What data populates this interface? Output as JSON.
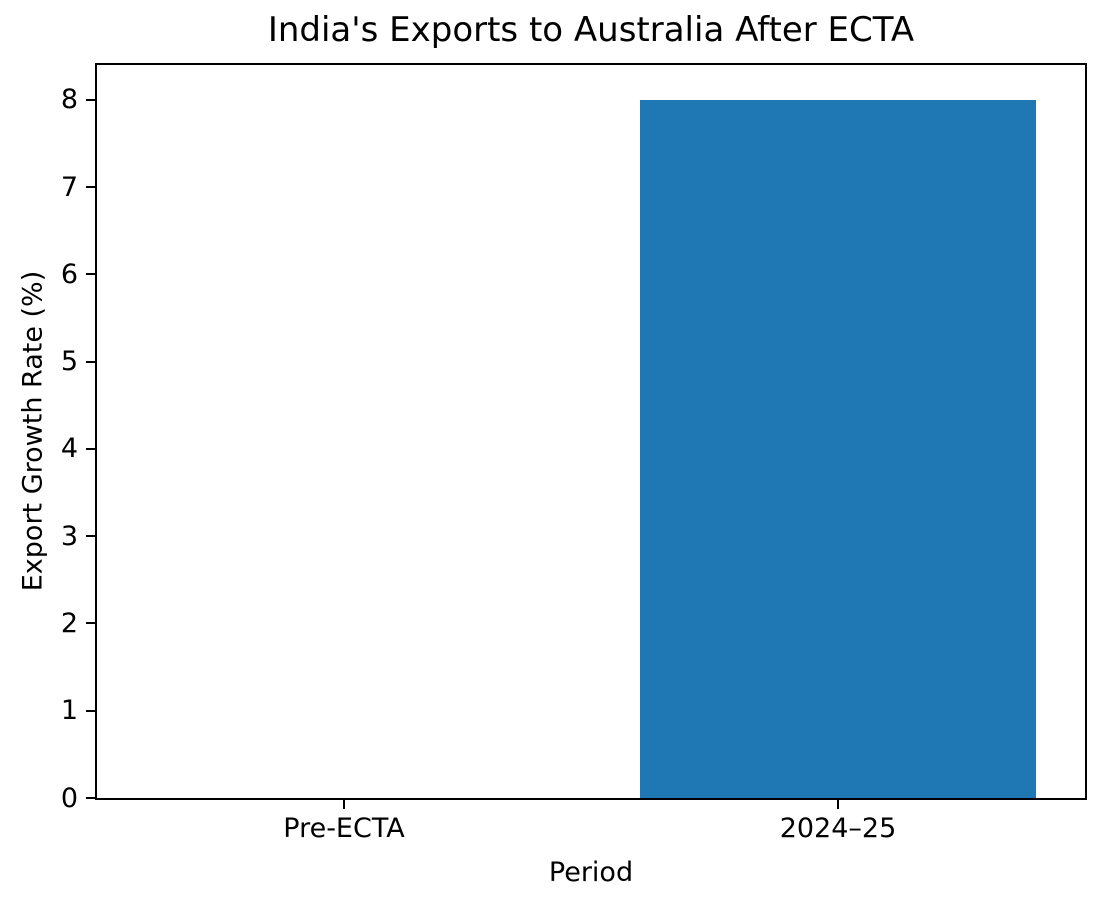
{
  "chart_data": {
    "type": "bar",
    "title": "India's Exports to Australia After ECTA",
    "xlabel": "Period",
    "ylabel": "Export Growth Rate (%)",
    "categories": [
      "Pre-ECTA",
      "2024–25"
    ],
    "values": [
      0,
      8
    ],
    "yticks": [
      0,
      1,
      2,
      3,
      4,
      5,
      6,
      7,
      8
    ],
    "ylim": [
      0,
      8.4
    ],
    "bar_color": "#1f77b4",
    "axis_color": "#000000",
    "background_color": "#ffffff",
    "grid": false,
    "legend_position": "none",
    "bar_width_fraction": 0.8
  }
}
